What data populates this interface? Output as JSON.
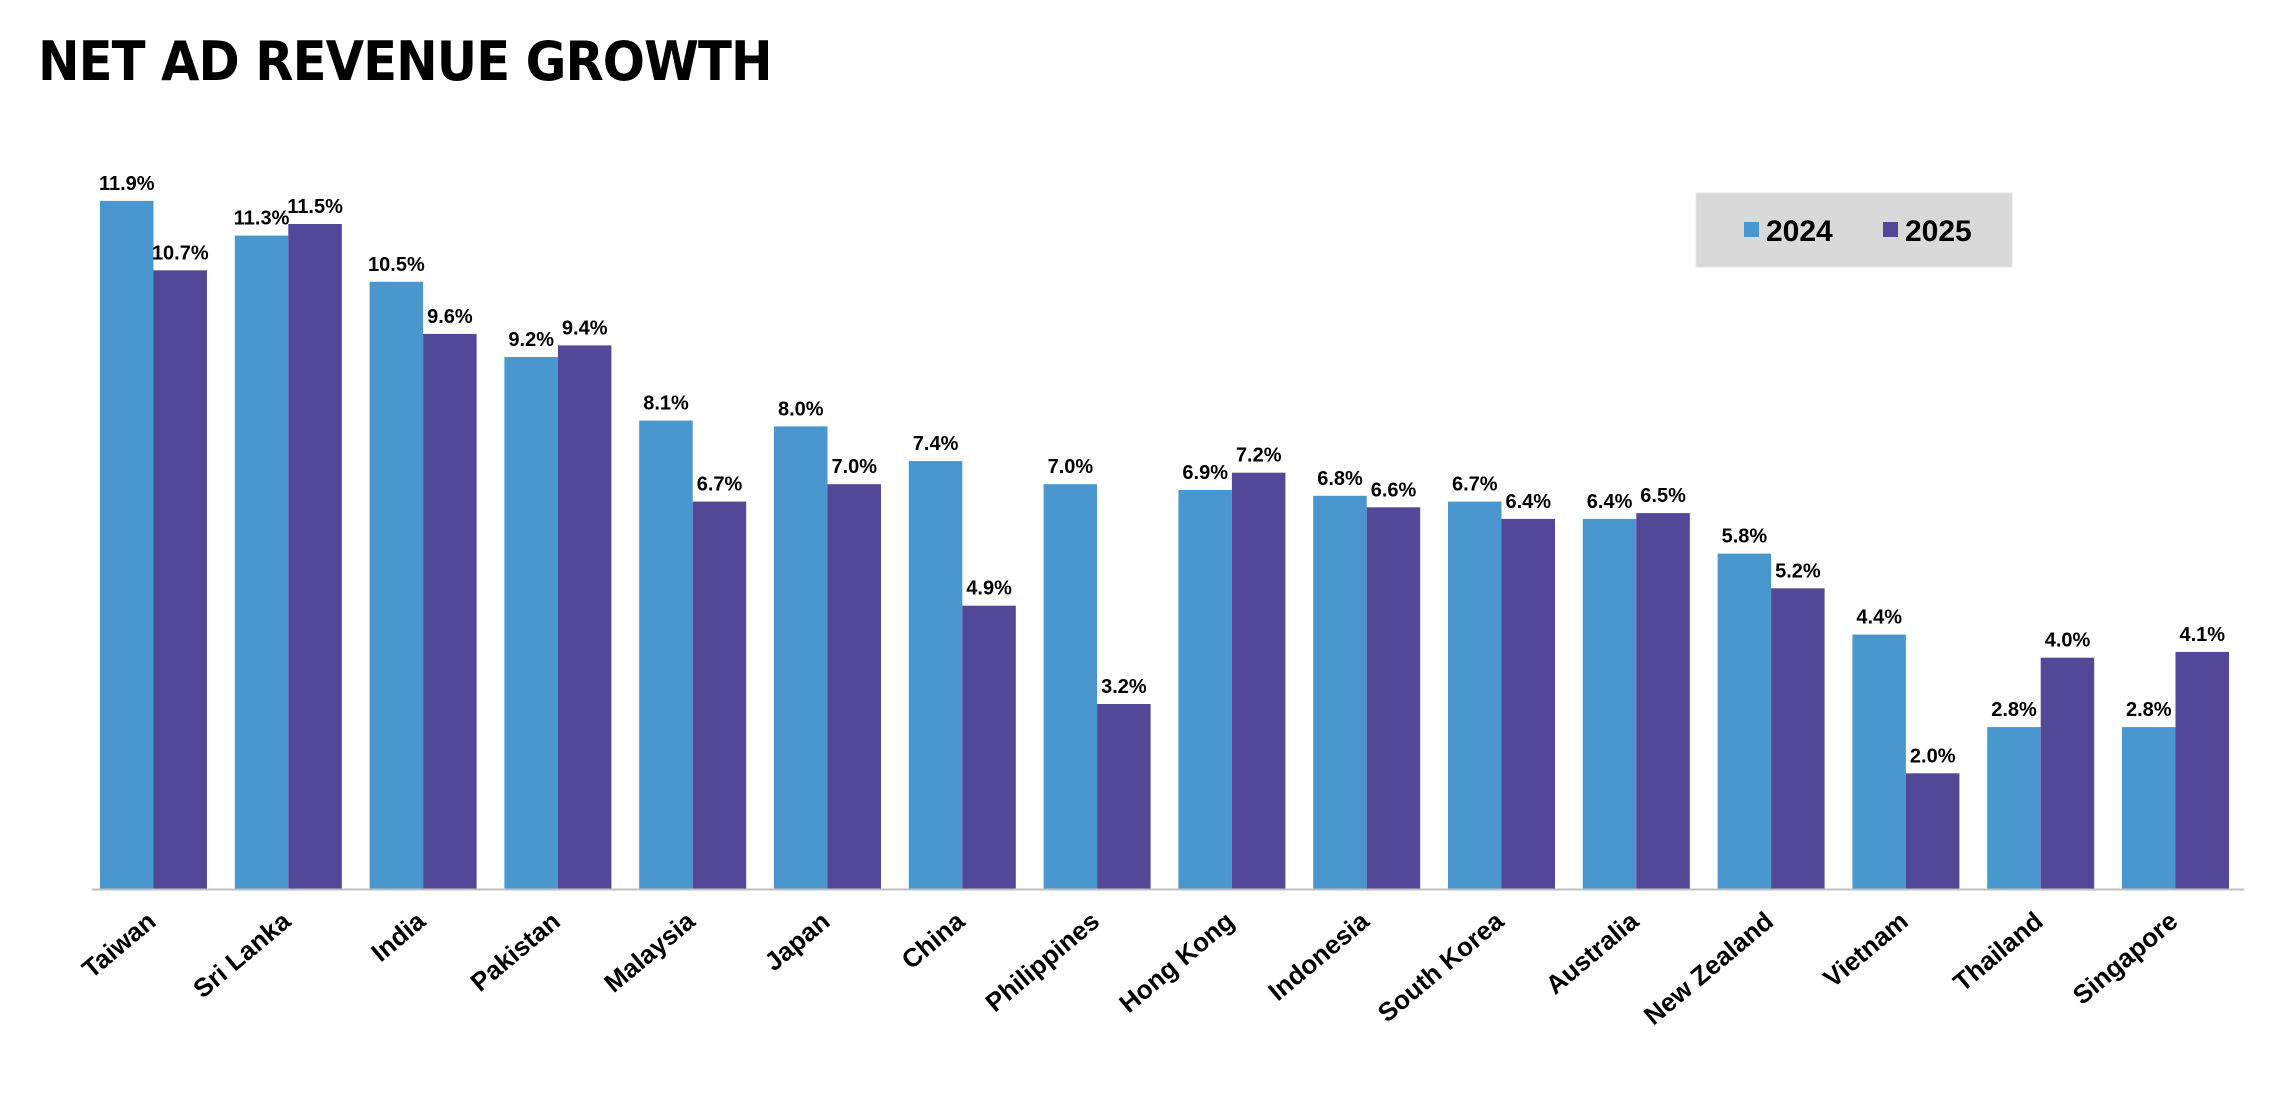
{
  "chart_data": {
    "type": "bar",
    "title": "NET AD REVENUE GROWTH",
    "xlabel": "",
    "ylabel": "",
    "ylim": [
      0,
      12.5
    ],
    "grid": false,
    "legend_position": "top-right",
    "categories": [
      "Taiwan",
      "Sri Lanka",
      "India",
      "Pakistan",
      "Malaysia",
      "Japan",
      "China",
      "Philippines",
      "Hong Kong",
      "Indonesia",
      "South Korea",
      "Australia",
      "New Zealand",
      "Vietnam",
      "Thailand",
      "Singapore"
    ],
    "series": [
      {
        "name": "2024",
        "color": "#4A97D0",
        "values": [
          11.9,
          11.3,
          10.5,
          9.2,
          8.1,
          8.0,
          7.4,
          7.0,
          6.9,
          6.8,
          6.7,
          6.4,
          5.8,
          4.4,
          2.8,
          2.8
        ],
        "labels": [
          "11.9%",
          "11.3%",
          "10.5%",
          "9.2%",
          "8.1%",
          "8.0%",
          "7.4%",
          "7.0%",
          "6.9%",
          "6.8%",
          "6.7%",
          "6.4%",
          "5.8%",
          "4.4%",
          "2.8%",
          "2.8%"
        ]
      },
      {
        "name": "2025",
        "color": "#534798",
        "values": [
          10.7,
          11.5,
          9.6,
          9.4,
          6.7,
          7.0,
          4.9,
          3.2,
          7.2,
          6.6,
          6.4,
          6.5,
          5.2,
          2.0,
          4.0,
          4.1
        ],
        "labels": [
          "10.7%",
          "11.5%",
          "9.6%",
          "9.4%",
          "6.7%",
          "7.0%",
          "4.9%",
          "3.2%",
          "7.2%",
          "6.6%",
          "6.4%",
          "6.5%",
          "5.2%",
          "2.0%",
          "4.0%",
          "4.1%"
        ]
      }
    ]
  },
  "legend": {
    "background": "#D9D9D9"
  },
  "axis_color": "#BFBFBF"
}
